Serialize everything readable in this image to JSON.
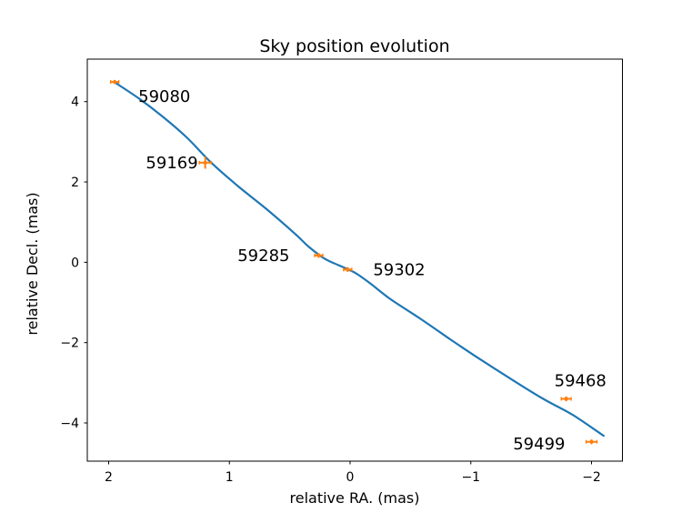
{
  "chart_data": {
    "type": "line+errorbar-scatter",
    "title": "Sky position evolution",
    "xlabel": "relative RA. (mas)",
    "ylabel": "relative Decl. (mas)",
    "x_axis_inverted": true,
    "xlim": [
      2.177,
      -2.256
    ],
    "ylim": [
      -4.951,
      5.058
    ],
    "x_tick_values": [
      2,
      1,
      0,
      -1,
      -2
    ],
    "x_tick_labels": [
      "2",
      "1",
      "0",
      "−1",
      "−2"
    ],
    "y_tick_values": [
      4,
      2,
      0,
      -2,
      -4
    ],
    "y_tick_labels": [
      "4",
      "2",
      "0",
      "−2",
      "−4"
    ],
    "grid": false,
    "colors": {
      "model_curve": "#1f77b4",
      "observations": "#ff7f0e",
      "text": "#000000",
      "frame": "#000000"
    },
    "model_curve": {
      "name": "astrometric-model-track",
      "points": [
        [
          1.95,
          4.48
        ],
        [
          1.75,
          4.08
        ],
        [
          1.55,
          3.62
        ],
        [
          1.35,
          3.1
        ],
        [
          1.15,
          2.48
        ],
        [
          0.93,
          1.9
        ],
        [
          0.69,
          1.32
        ],
        [
          0.46,
          0.72
        ],
        [
          0.34,
          0.38
        ],
        [
          0.21,
          0.09
        ],
        [
          0.09,
          -0.08
        ],
        [
          -0.04,
          -0.26
        ],
        [
          -0.16,
          -0.51
        ],
        [
          -0.34,
          -0.93
        ],
        [
          -0.59,
          -1.42
        ],
        [
          -0.84,
          -1.94
        ],
        [
          -1.09,
          -2.44
        ],
        [
          -1.34,
          -2.92
        ],
        [
          -1.6,
          -3.4
        ],
        [
          -1.85,
          -3.81
        ],
        [
          -2.1,
          -4.32
        ]
      ]
    },
    "observations": [
      {
        "label": "59080",
        "ra": 1.95,
        "dec": 4.49,
        "xerr": 0.034,
        "yerr": 0.05,
        "label_anchor": "start",
        "label_dx": 26,
        "label_dy": 22
      },
      {
        "label": "59169",
        "ra": 1.2,
        "dec": 2.48,
        "xerr": 0.049,
        "yerr": 0.15,
        "label_anchor": "end",
        "label_dx": -8,
        "label_dy": 6
      },
      {
        "label": "59285",
        "ra": 0.26,
        "dec": 0.17,
        "xerr": 0.034,
        "yerr": 0.06,
        "label_anchor": "end",
        "label_dx": -32,
        "label_dy": 6
      },
      {
        "label": "59302",
        "ra": 0.02,
        "dec": -0.18,
        "xerr": 0.034,
        "yerr": 0.06,
        "label_anchor": "start",
        "label_dx": 28,
        "label_dy": 6
      },
      {
        "label": "59468",
        "ra": -1.79,
        "dec": -3.4,
        "xerr": 0.041,
        "yerr": 0.06,
        "label_anchor": "start",
        "label_dx": -13,
        "label_dy": -14
      },
      {
        "label": "59499",
        "ra": -2.0,
        "dec": -4.47,
        "xerr": 0.045,
        "yerr": 0.06,
        "label_anchor": "end",
        "label_dx": -29,
        "label_dy": 8
      }
    ]
  }
}
